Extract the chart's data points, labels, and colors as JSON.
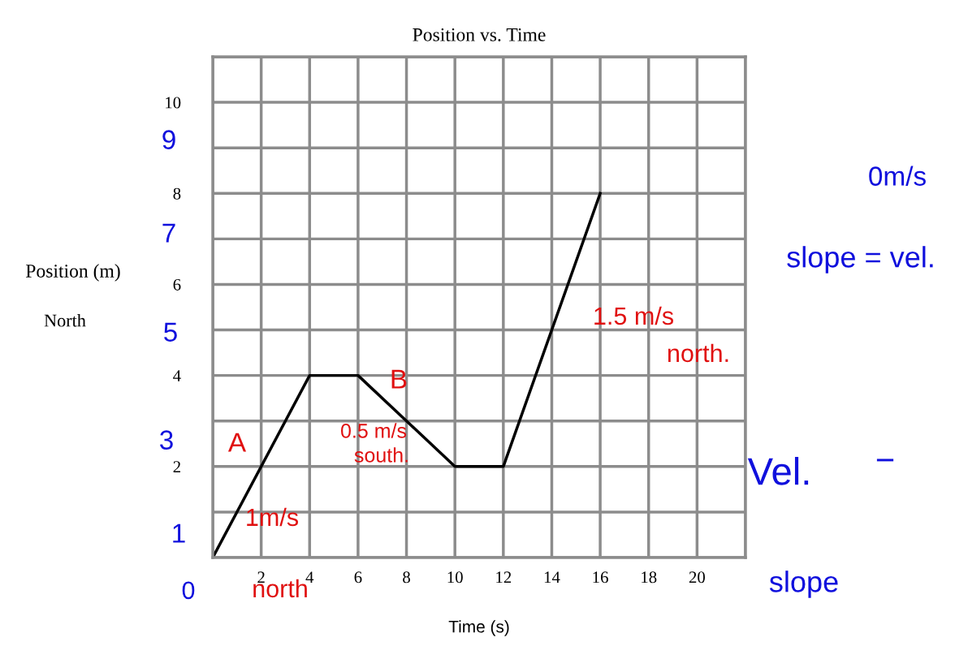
{
  "chart_data": {
    "type": "line",
    "title": "Position vs. Time",
    "xlabel": "Time (s)",
    "ylabel": "Position (m)",
    "x": [
      0,
      4,
      6,
      10,
      12,
      16
    ],
    "series": [
      {
        "color": "#000000",
        "values": [
          0,
          4,
          4,
          2,
          2,
          8
        ]
      }
    ],
    "xlim": [
      0,
      22
    ],
    "ylim": [
      0,
      11
    ],
    "xticks": [
      {
        "value": 0,
        "label": null
      },
      2,
      4,
      6,
      8,
      10,
      12,
      14,
      16,
      18,
      20,
      {
        "value": 22,
        "label": null
      }
    ],
    "yticks": [
      {
        "value": 0,
        "label": null
      },
      {
        "value": 1,
        "label": null
      },
      2,
      {
        "value": 3,
        "label": null
      },
      4,
      {
        "value": 5,
        "label": null
      },
      6,
      {
        "value": 7,
        "label": null
      },
      8,
      {
        "value": 9,
        "label": null
      },
      10,
      {
        "value": 11,
        "label": null
      }
    ],
    "grid": true,
    "marker": "none",
    "line_style": "solid",
    "annotations": [
      "North",
      "9",
      "7",
      "5",
      "3",
      "1",
      "0",
      "0m/s",
      "slope = vel.",
      "1.5 m/s",
      "north.",
      "A",
      "B",
      "1m/s",
      "north",
      "0.5 m/s",
      "south.",
      "Vel.",
      "−",
      "slope"
    ]
  }
}
